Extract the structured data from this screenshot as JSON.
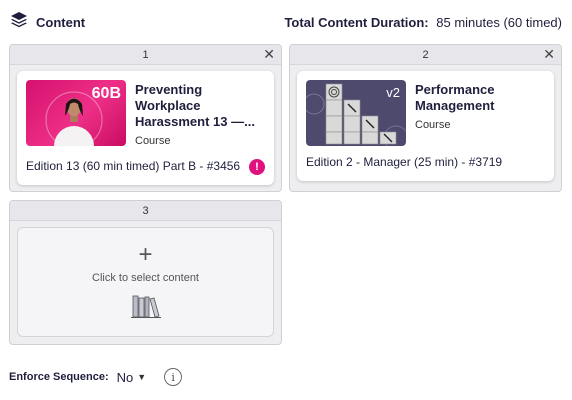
{
  "header": {
    "title": "Content",
    "duration_label": "Total Content Duration:",
    "duration_value": "85 minutes (60 timed)"
  },
  "slots": [
    {
      "number": "1",
      "card": {
        "badge": "60B",
        "title": "Preventing Workplace Harassment 13 —...",
        "type": "Course",
        "edition": "Edition 13 (60 min timed) Part B - #3456",
        "alert": "!"
      }
    },
    {
      "number": "2",
      "card": {
        "badge": "v2",
        "title": "Performance Management",
        "type": "Course",
        "edition": "Edition 2 - Manager (25 min) - #3719"
      }
    },
    {
      "number": "3",
      "empty": {
        "plus": "+",
        "hint": "Click to select content"
      }
    }
  ],
  "footer": {
    "enforce_label": "Enforce Sequence:",
    "enforce_value": "No",
    "info": "i"
  },
  "colors": {
    "accent_pink": "#e0117f",
    "thumb_purple": "#4d4a6e",
    "text_dark": "#1f1f3d"
  }
}
